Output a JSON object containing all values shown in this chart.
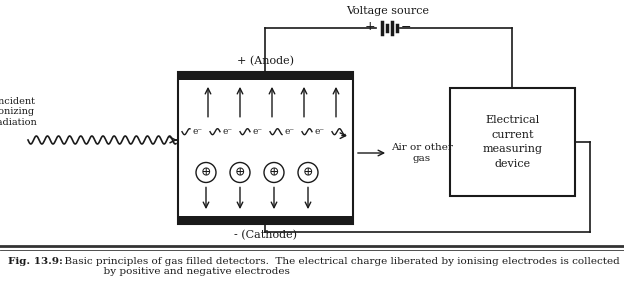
{
  "bg_color": "#ffffff",
  "line_color": "#1a1a1a",
  "caption_bold": "Fig. 13.9:",
  "caption_rest": "  Basic principles of gas filled detectors.  The electrical charge liberated by ionising electrodes is collected\n              by positive and negative electrodes",
  "anode_label": "+ (Anode)",
  "cathode_label": "- (Cathode)",
  "radiation_label": "Incident\nionizing\nradiation",
  "gas_label": "Air or other\ngas",
  "device_label": "Electrical\ncurrent\nmeasuring\ndevice",
  "voltage_label": "Voltage source"
}
